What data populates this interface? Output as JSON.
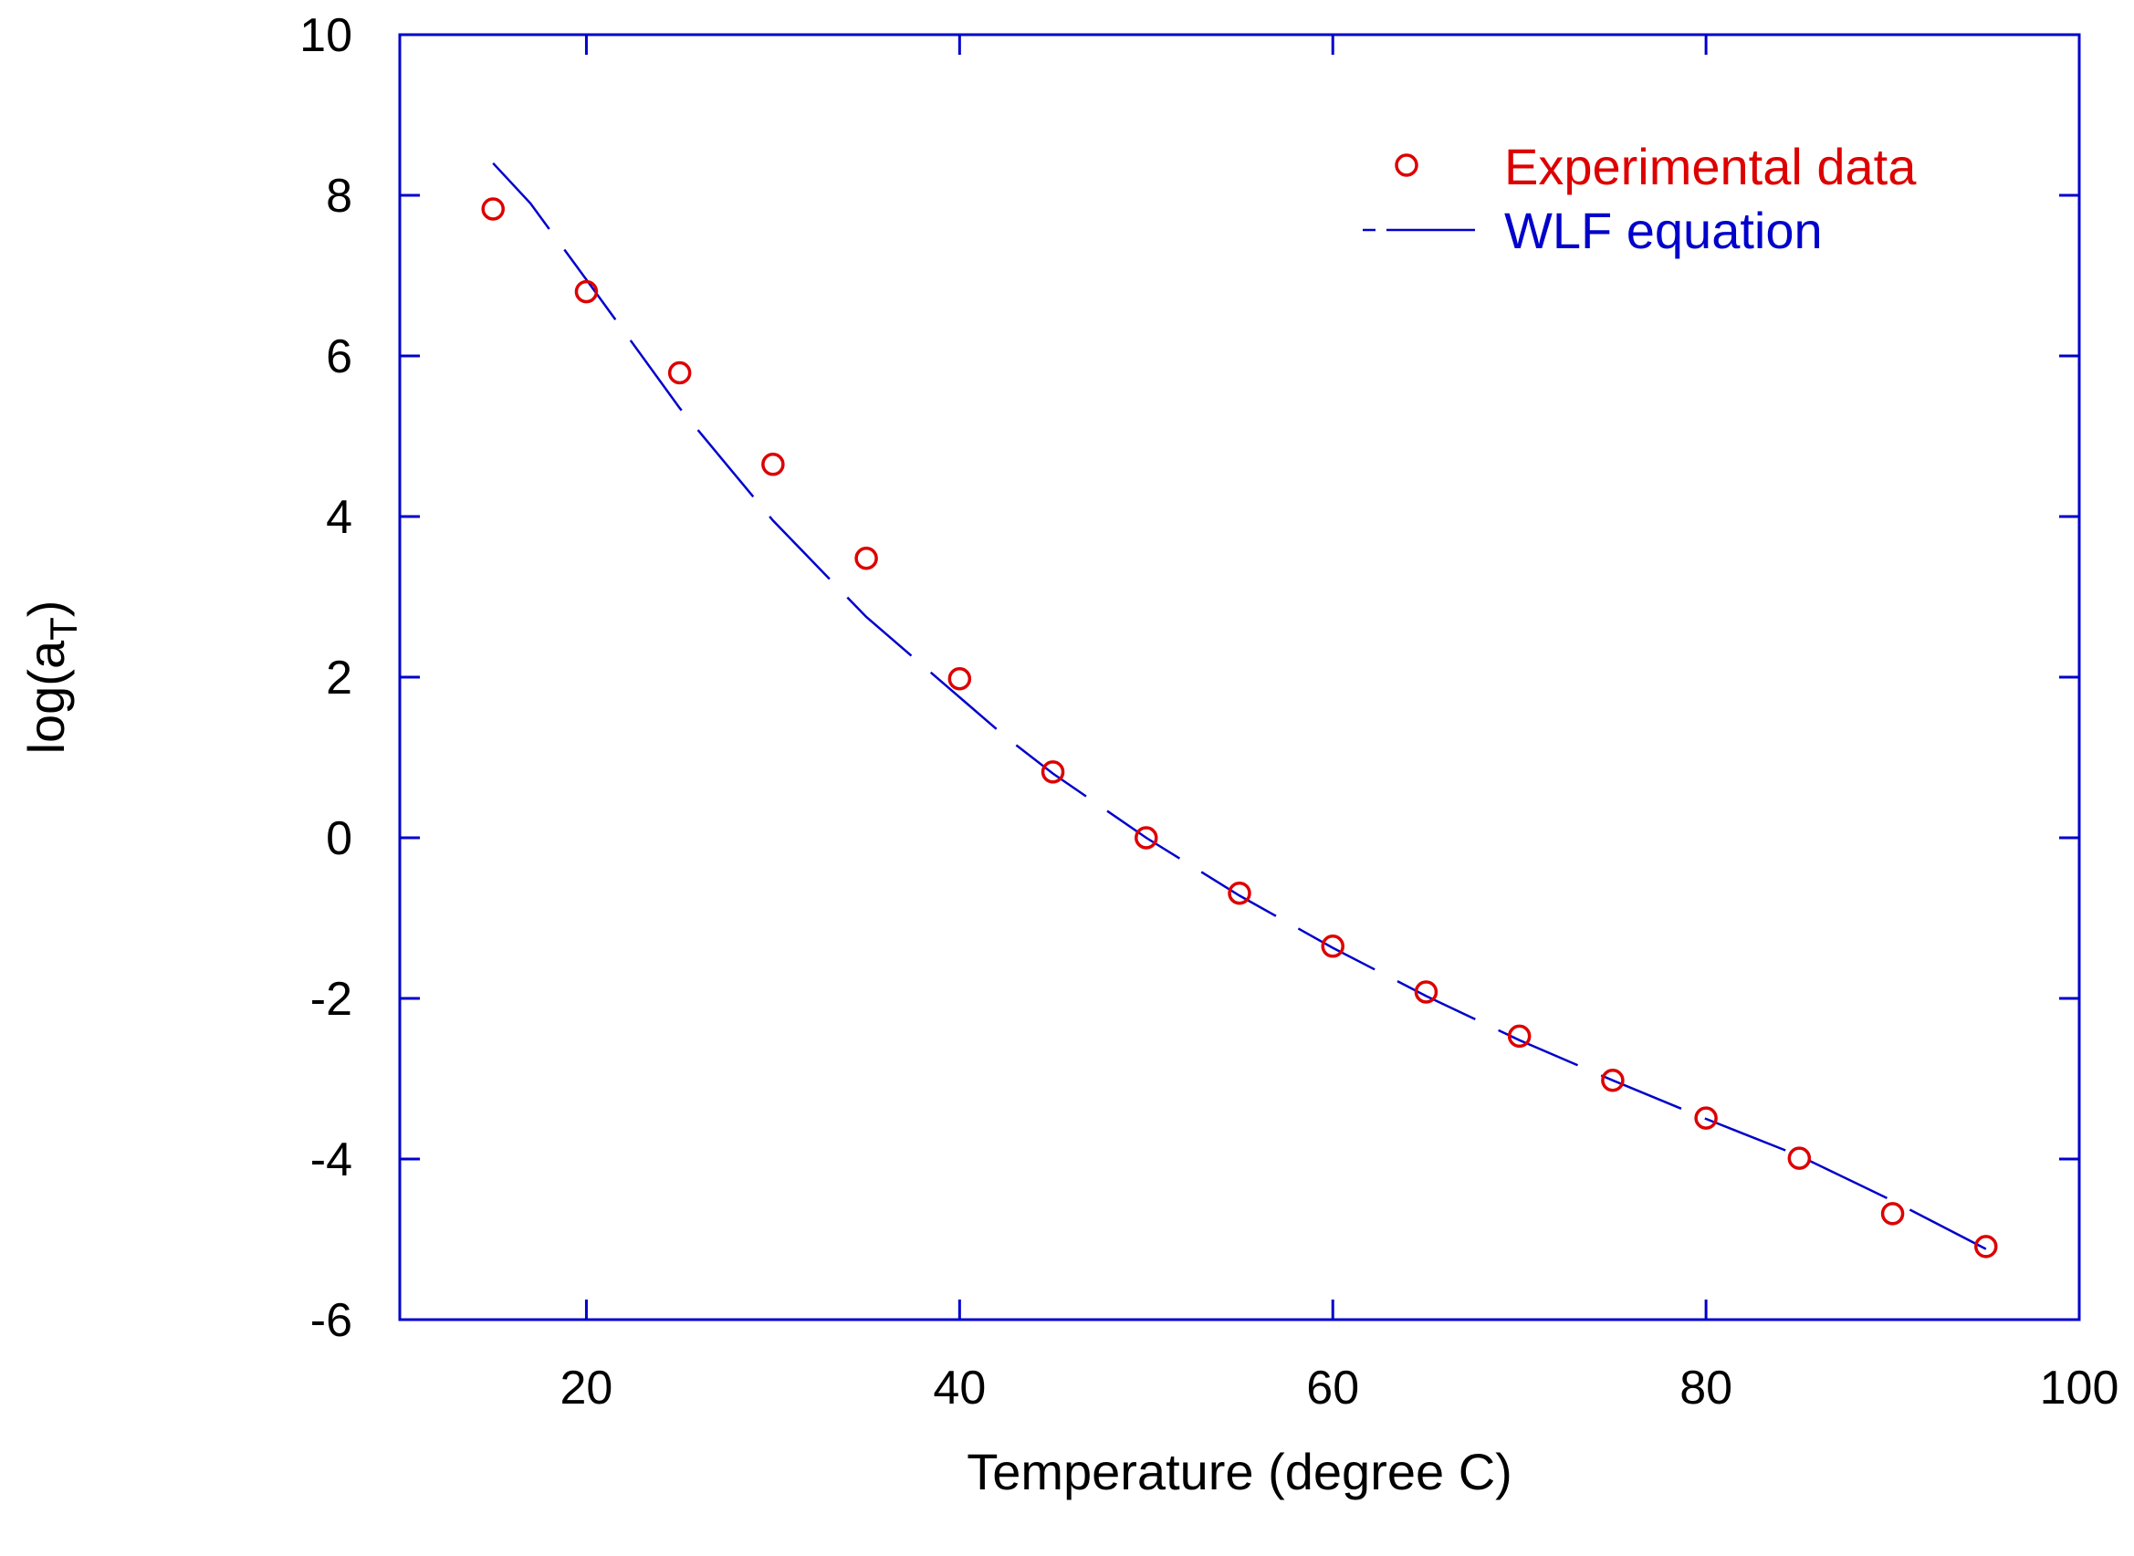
{
  "chart_data": {
    "type": "scatter",
    "title": "",
    "xlabel": "Temperature (degree C)",
    "ylabel": "log(a",
    "ylabel_subscript": "T",
    "ylabel_close": ")",
    "xlim": [
      10,
      100
    ],
    "ylim": [
      -6,
      10
    ],
    "xticks": [
      20,
      40,
      60,
      80,
      100
    ],
    "yticks": [
      -6,
      -4,
      -2,
      0,
      2,
      4,
      6,
      8,
      10
    ],
    "grid": false,
    "legend_position": "top-right",
    "axis_color": "#0000cc",
    "series": [
      {
        "name": "Experimental data",
        "kind": "marker",
        "marker": "open-circle",
        "color": "#dd0000",
        "x": [
          15,
          20,
          25,
          30,
          35,
          40,
          45,
          50,
          55,
          60,
          65,
          70,
          75,
          80,
          85,
          90,
          95
        ],
        "y": [
          7.83,
          6.8,
          5.79,
          4.65,
          3.48,
          1.98,
          0.82,
          0.0,
          -0.69,
          -1.35,
          -1.92,
          -2.47,
          -3.02,
          -3.49,
          -3.99,
          -4.68,
          -5.09
        ]
      },
      {
        "name": "WLF equation",
        "kind": "line",
        "dash": "long-dash",
        "color": "#0000cc",
        "x": [
          15,
          17,
          20,
          22.5,
          25,
          27.5,
          30,
          32.5,
          35,
          37.5,
          40,
          42.5,
          45,
          47.5,
          50,
          55,
          60,
          65,
          70,
          75,
          80,
          85,
          90,
          95
        ],
        "y": [
          8.4,
          7.9,
          6.95,
          6.15,
          5.35,
          4.65,
          3.95,
          3.35,
          2.75,
          2.25,
          1.75,
          1.25,
          0.8,
          0.4,
          0.0,
          -0.72,
          -1.37,
          -1.97,
          -2.52,
          -3.02,
          -3.5,
          -3.96,
          -4.52,
          -5.12
        ]
      }
    ]
  }
}
